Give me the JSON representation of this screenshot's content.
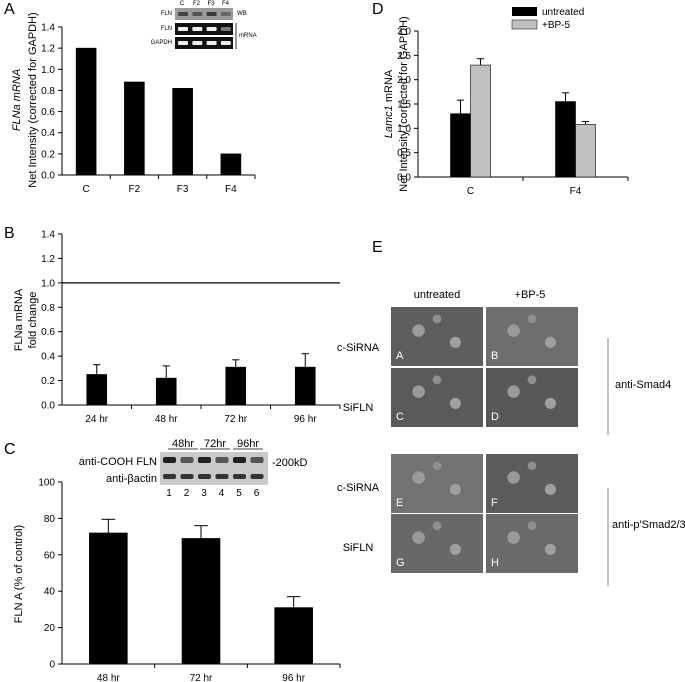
{
  "panelA": {
    "letter": "A",
    "ylabel_italic": "FLNa mRNA",
    "ylabel": "Net Intensity (corrected for GAPDH)",
    "inset": {
      "lanes": [
        "C",
        "F2",
        "F3",
        "F4"
      ],
      "rows": [
        "FLN",
        "FLN",
        "GAPDH"
      ],
      "tag_wb": "WB",
      "tag_mrna": "mRNA"
    }
  },
  "panelB": {
    "letter": "B",
    "ylabel": "FLNa mRNA",
    "ylabel2": "fold change"
  },
  "panelC": {
    "letter": "C",
    "ylabel": "FLN A (% of control)",
    "blot": {
      "label1": "anti-COOH FLN",
      "label2": "anti-βactin",
      "kd": "-200kD",
      "times": [
        "48hr",
        "72hr",
        "96hr"
      ],
      "lanes": [
        "1",
        "2",
        "3",
        "4",
        "5",
        "6"
      ]
    }
  },
  "panelD": {
    "letter": "D",
    "ylabel_italic": "Lamc1",
    "ylabel_rest": " mRNA",
    "ylabel2": "Net Intensity (corrected for GAPDH)",
    "legend": [
      "untreated",
      "+BP-5"
    ]
  },
  "panelE": {
    "letter": "E",
    "col_labels": [
      "untreated",
      "+BP-5"
    ],
    "row_labels": [
      "c-SiRNA",
      "SiFLN",
      "c-SiRNA",
      "SiFLN"
    ],
    "antibody1": "anti-Smad4",
    "antibody2": "anti-p'Smad2/3",
    "cells": [
      "A",
      "B",
      "C",
      "D",
      "E",
      "F",
      "G",
      "H"
    ]
  },
  "chart_data": [
    {
      "type": "bar",
      "panel": "A",
      "categories": [
        "C",
        "F2",
        "F3",
        "F4"
      ],
      "values": [
        1.2,
        0.88,
        0.82,
        0.2
      ],
      "ylim": [
        0,
        1.4
      ],
      "yticks": [
        "0.0",
        "0.2",
        "0.4",
        "0.6",
        "0.8",
        "1.0",
        "1.2",
        "1.4"
      ],
      "color": "#000000"
    },
    {
      "type": "bar",
      "panel": "B",
      "categories": [
        "24 hr",
        "48 hr",
        "72 hr",
        "96 hr"
      ],
      "values": [
        0.25,
        0.22,
        0.31,
        0.31
      ],
      "errors": [
        0.08,
        0.1,
        0.06,
        0.11
      ],
      "ylim": [
        0,
        1.4
      ],
      "reference_line": 1.0,
      "yticks": [
        "0.0",
        "0.2",
        "0.4",
        "0.6",
        "0.8",
        "1.0",
        "1.2",
        "1.4"
      ],
      "color": "#000000"
    },
    {
      "type": "bar",
      "panel": "C",
      "categories": [
        "48 hr",
        "72 hr",
        "96 hr"
      ],
      "values": [
        72,
        69,
        31
      ],
      "errors": [
        7.5,
        7,
        6
      ],
      "ylim": [
        0,
        100
      ],
      "yticks": [
        "0",
        "20",
        "40",
        "60",
        "80",
        "100"
      ],
      "color": "#000000"
    },
    {
      "type": "bar",
      "panel": "D",
      "categories": [
        "C",
        "F4"
      ],
      "series": [
        {
          "name": "untreated",
          "values": [
            1.3,
            1.55
          ],
          "errors": [
            0.28,
            0.18
          ],
          "color": "#000000"
        },
        {
          "name": "+BP-5",
          "values": [
            2.3,
            1.08
          ],
          "errors": [
            0.13,
            0.06
          ],
          "color": "#c0c0c0"
        }
      ],
      "ylim": [
        0,
        3.0
      ],
      "yticks": [
        "0.0",
        "0.5",
        "1.0",
        "1.5",
        "2.0",
        "2.5",
        "3.0"
      ],
      "legend": "top-right"
    }
  ]
}
